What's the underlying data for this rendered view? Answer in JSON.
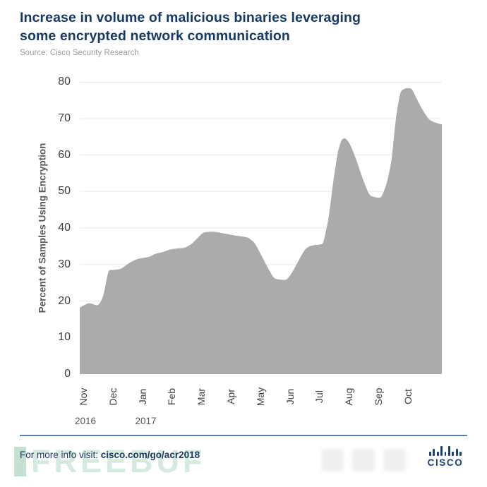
{
  "page": {
    "title_lines": [
      "Increase in volume of malicious binaries leveraging",
      "some encrypted network communication"
    ],
    "source": "Source: Cisco Security Research",
    "footer": {
      "info_prefix": "For more info visit: ",
      "info_link": "cisco.com/go/acr2018",
      "brand_name": "CISCO",
      "brand_icon": "cisco-bridge-bars-icon"
    },
    "watermarks": {
      "freebuf": "FREEBUF"
    },
    "colors": {
      "title_navy": "#163a64",
      "area_fill": "#a9abac",
      "gridline": "#ededee",
      "tick_label": "#414042",
      "axis_title": "#58595b",
      "source_gray": "#9b9b9b",
      "divider_slate": "#5b7e9f",
      "cisco_logo_navy": "#1c4273",
      "watermark_green": "#96c6aa"
    }
  },
  "chart_data": {
    "type": "area",
    "title": "Increase in volume of malicious binaries leveraging some encrypted network communication",
    "source": "Cisco Security Research",
    "xlabel": "",
    "ylabel": "Percent of Samples Using Encryption",
    "ylim": [
      0,
      80
    ],
    "y_ticks": [
      0,
      10,
      20,
      30,
      40,
      50,
      60,
      70,
      80
    ],
    "x_tick_labels": [
      "Nov",
      "Dec",
      "Jan",
      "Feb",
      "Mar",
      "Apr",
      "May",
      "Jun",
      "Jul",
      "Aug",
      "Sep",
      "Oct"
    ],
    "x_year_labels": [
      {
        "label": "2016",
        "month_index": 0
      },
      {
        "label": "2017",
        "month_index": 2
      }
    ],
    "grid": true,
    "legend": "none",
    "monthly_values": {
      "Nov 2016": 18.5,
      "Dec 2016": 28.5,
      "Jan 2017": 32,
      "Feb 2017": 34,
      "Mar 2017": 39,
      "Apr 2017": 37.5,
      "May 2017": 26,
      "Jun 2017": 35.5,
      "Jul 2017": 64.5,
      "Aug 2017": 48.5,
      "Sep 2017": 78,
      "Oct 2017": 68
    },
    "series": [
      {
        "name": "Percent of samples using encryption",
        "x_unit": "months_after_2016-11-01",
        "points": [
          [
            0.0,
            18.2
          ],
          [
            0.3,
            19.4
          ],
          [
            0.6,
            18.9
          ],
          [
            0.78,
            21.5
          ],
          [
            0.95,
            28.0
          ],
          [
            1.1,
            28.5
          ],
          [
            1.35,
            28.8
          ],
          [
            1.62,
            30.3
          ],
          [
            1.88,
            31.4
          ],
          [
            2.1,
            31.8
          ],
          [
            2.3,
            32.1
          ],
          [
            2.5,
            32.9
          ],
          [
            2.74,
            33.4
          ],
          [
            3.0,
            34.1
          ],
          [
            3.25,
            34.4
          ],
          [
            3.48,
            34.6
          ],
          [
            3.7,
            35.6
          ],
          [
            3.9,
            37.2
          ],
          [
            4.1,
            38.7
          ],
          [
            4.4,
            39.0
          ],
          [
            4.6,
            38.8
          ],
          [
            4.85,
            38.4
          ],
          [
            5.1,
            38.0
          ],
          [
            5.35,
            37.7
          ],
          [
            5.58,
            37.3
          ],
          [
            5.8,
            35.8
          ],
          [
            6.0,
            32.8
          ],
          [
            6.2,
            29.6
          ],
          [
            6.42,
            26.5
          ],
          [
            6.6,
            25.9
          ],
          [
            6.85,
            25.9
          ],
          [
            7.05,
            28.0
          ],
          [
            7.25,
            31.0
          ],
          [
            7.45,
            33.9
          ],
          [
            7.6,
            34.9
          ],
          [
            7.78,
            35.3
          ],
          [
            7.98,
            35.5
          ],
          [
            8.08,
            36.3
          ],
          [
            8.25,
            43.0
          ],
          [
            8.4,
            52.5
          ],
          [
            8.55,
            60.5
          ],
          [
            8.68,
            64.0
          ],
          [
            8.8,
            64.5
          ],
          [
            8.95,
            63.0
          ],
          [
            9.15,
            59.0
          ],
          [
            9.4,
            53.0
          ],
          [
            9.6,
            49.2
          ],
          [
            9.8,
            48.4
          ],
          [
            10.0,
            48.6
          ],
          [
            10.18,
            52.5
          ],
          [
            10.33,
            58.5
          ],
          [
            10.48,
            70.0
          ],
          [
            10.63,
            77.0
          ],
          [
            10.8,
            78.2
          ],
          [
            11.0,
            78.0
          ],
          [
            11.16,
            75.5
          ],
          [
            11.35,
            72.5
          ],
          [
            11.55,
            70.0
          ],
          [
            11.7,
            69.1
          ],
          [
            11.85,
            68.7
          ],
          [
            12.0,
            68.3
          ]
        ]
      }
    ]
  }
}
